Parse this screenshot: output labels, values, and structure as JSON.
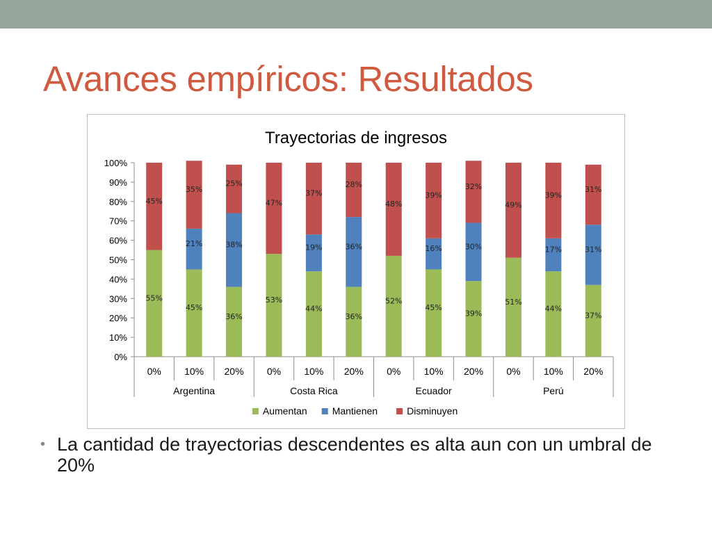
{
  "slide": {
    "title": "Avances empíricos: Resultados",
    "bullets": [
      "La cantidad de trayectorias descendentes es alta aun con un umbral de 20%"
    ]
  },
  "colors": {
    "top_bar": "#94a59a",
    "title": "#d05a3f",
    "aumentan": "#9bbb59",
    "mantienen": "#4f81bd",
    "disminuyen": "#c0504d"
  },
  "chart_data": {
    "type": "bar",
    "stacked": true,
    "title": "Trayectorias de ingresos",
    "categories": [
      "0%",
      "10%",
      "20%",
      "0%",
      "10%",
      "20%",
      "0%",
      "10%",
      "20%",
      "0%",
      "10%",
      "20%"
    ],
    "groups": [
      {
        "label": "Argentina",
        "count": 3
      },
      {
        "label": "Costa Rica",
        "count": 3
      },
      {
        "label": "Ecuador",
        "count": 3
      },
      {
        "label": "Perú",
        "count": 3
      }
    ],
    "series": [
      {
        "name": "Aumentan",
        "color": "#9bbb59",
        "values": [
          55,
          45,
          36,
          53,
          44,
          36,
          52,
          45,
          39,
          51,
          44,
          37
        ]
      },
      {
        "name": "Mantienen",
        "color": "#4f81bd",
        "values": [
          0,
          21,
          38,
          0,
          19,
          36,
          0,
          16,
          30,
          0,
          17,
          31
        ]
      },
      {
        "name": "Disminuyen",
        "color": "#c0504d",
        "values": [
          45,
          35,
          25,
          47,
          37,
          28,
          48,
          39,
          32,
          49,
          39,
          31
        ]
      }
    ],
    "ylim": [
      0,
      100
    ],
    "yticks": [
      "0%",
      "10%",
      "20%",
      "30%",
      "40%",
      "50%",
      "60%",
      "70%",
      "80%",
      "90%",
      "100%"
    ],
    "legend_position": "bottom",
    "grid": false
  }
}
